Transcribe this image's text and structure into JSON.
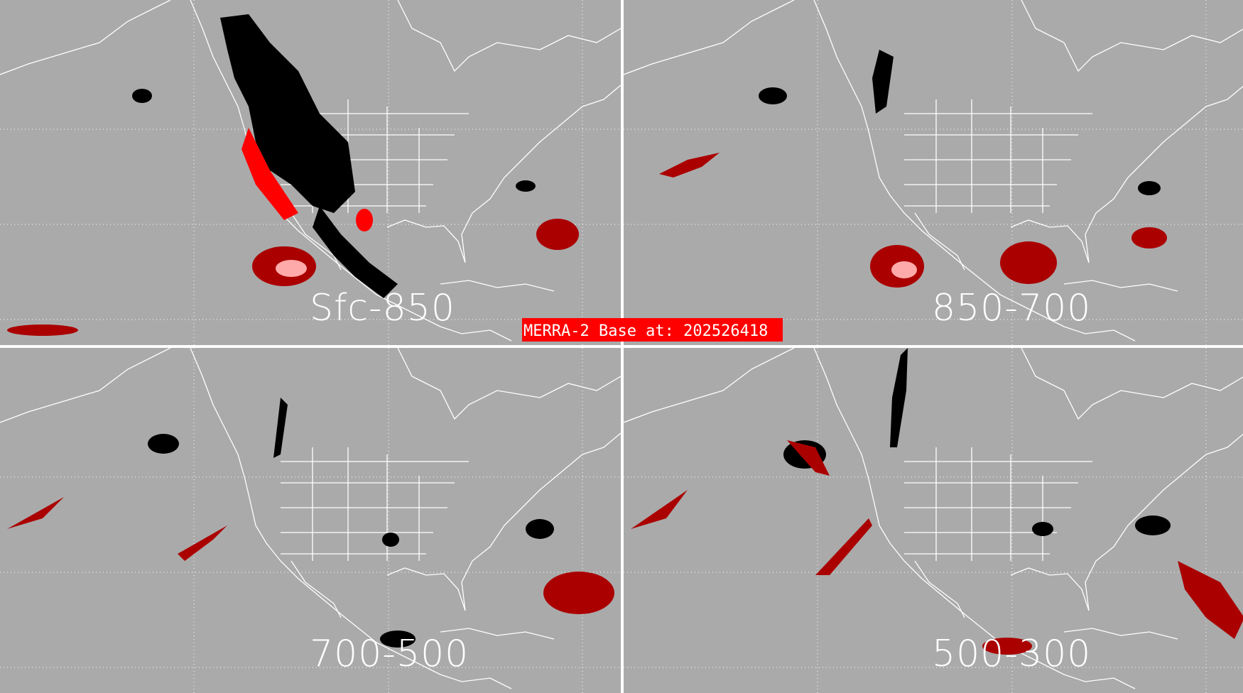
{
  "panels": [
    {
      "label": "Sfc-850"
    },
    {
      "label": "850-700"
    },
    {
      "label": "700-500"
    },
    {
      "label": "500-300"
    }
  ],
  "base_label": "MERRA-2 Base at: 202526418",
  "colors": {
    "background": "#aaaaaa",
    "coast": "#ffffff",
    "black_shade": "#000000",
    "dark_red": "#aa0000",
    "red": "#ff0000",
    "pink": "#ffaaaa"
  }
}
